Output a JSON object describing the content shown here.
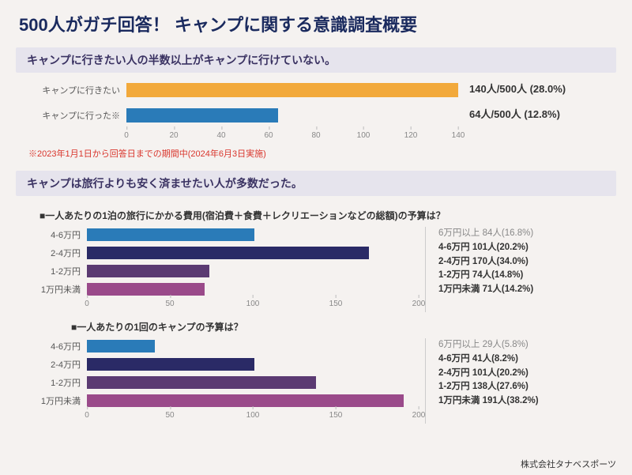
{
  "title": "500人がガチ回答！ キャンプに関する意識調査概要",
  "background_color": "#f5f2f0",
  "title_color": "#1a2a5e",
  "section1": {
    "header": "キャンプに行きたい人の半数以上がキャンプに行けていない。",
    "header_bg": "#e6e4ed",
    "header_color": "#3a3262",
    "chart": {
      "type": "bar-horizontal",
      "xmax": 140,
      "xtick_step": 20,
      "bars": [
        {
          "label": "キャンプに行きたい",
          "value": 140,
          "color": "#f2a93b",
          "stat": "140人/500人 (28.0%)"
        },
        {
          "label": "キャンプに行った※",
          "value": 64,
          "color": "#2a7bb8",
          "stat": "64人/500人 (12.8%)"
        }
      ]
    },
    "footnote": "※2023年1月1日から回答日までの期間中(2024年6月3日実施)",
    "footnote_color": "#d9352c"
  },
  "section2": {
    "header": "キャンプは旅行よりも安く済ませたい人が多数だった。",
    "q1": {
      "title": "■一人あたりの1泊の旅行にかかる費用(宿泊費＋食費＋レクリエーションなどの総額)の予算は？",
      "type": "bar-horizontal",
      "xmax": 200,
      "xtick_step": 50,
      "bars": [
        {
          "label": "4-6万円",
          "value": 101,
          "color": "#2a7bb8"
        },
        {
          "label": "2-4万円",
          "value": 170,
          "color": "#2a2a66"
        },
        {
          "label": "1-2万円",
          "value": 74,
          "color": "#5b3a72"
        },
        {
          "label": "1万円未満",
          "value": 71,
          "color": "#9a4a8a"
        }
      ],
      "legend": [
        {
          "text": "6万円以上 84人(16.8%)",
          "dim": true
        },
        {
          "text": "4-6万円 101人(20.2%)"
        },
        {
          "text": "2-4万円 170人(34.0%)"
        },
        {
          "text": "1-2万円 74人(14.8%)"
        },
        {
          "text": "1万円未満 71人(14.2%)"
        }
      ]
    },
    "q2": {
      "title": "■一人あたりの1回のキャンプの予算は？",
      "type": "bar-horizontal",
      "xmax": 200,
      "xtick_step": 50,
      "bars": [
        {
          "label": "4-6万円",
          "value": 41,
          "color": "#2a7bb8"
        },
        {
          "label": "2-4万円",
          "value": 101,
          "color": "#2a2a66"
        },
        {
          "label": "1-2万円",
          "value": 138,
          "color": "#5b3a72"
        },
        {
          "label": "1万円未満",
          "value": 191,
          "color": "#9a4a8a"
        }
      ],
      "legend": [
        {
          "text": "6万円以上 29人(5.8%)",
          "dim": true
        },
        {
          "text": "4-6万円 41人(8.2%)"
        },
        {
          "text": "2-4万円 101人(20.2%)"
        },
        {
          "text": "1-2万円 138人(27.6%)"
        },
        {
          "text": "1万円未満 191人(38.2%)"
        }
      ]
    }
  },
  "company": "株式会社タナベスポーツ"
}
